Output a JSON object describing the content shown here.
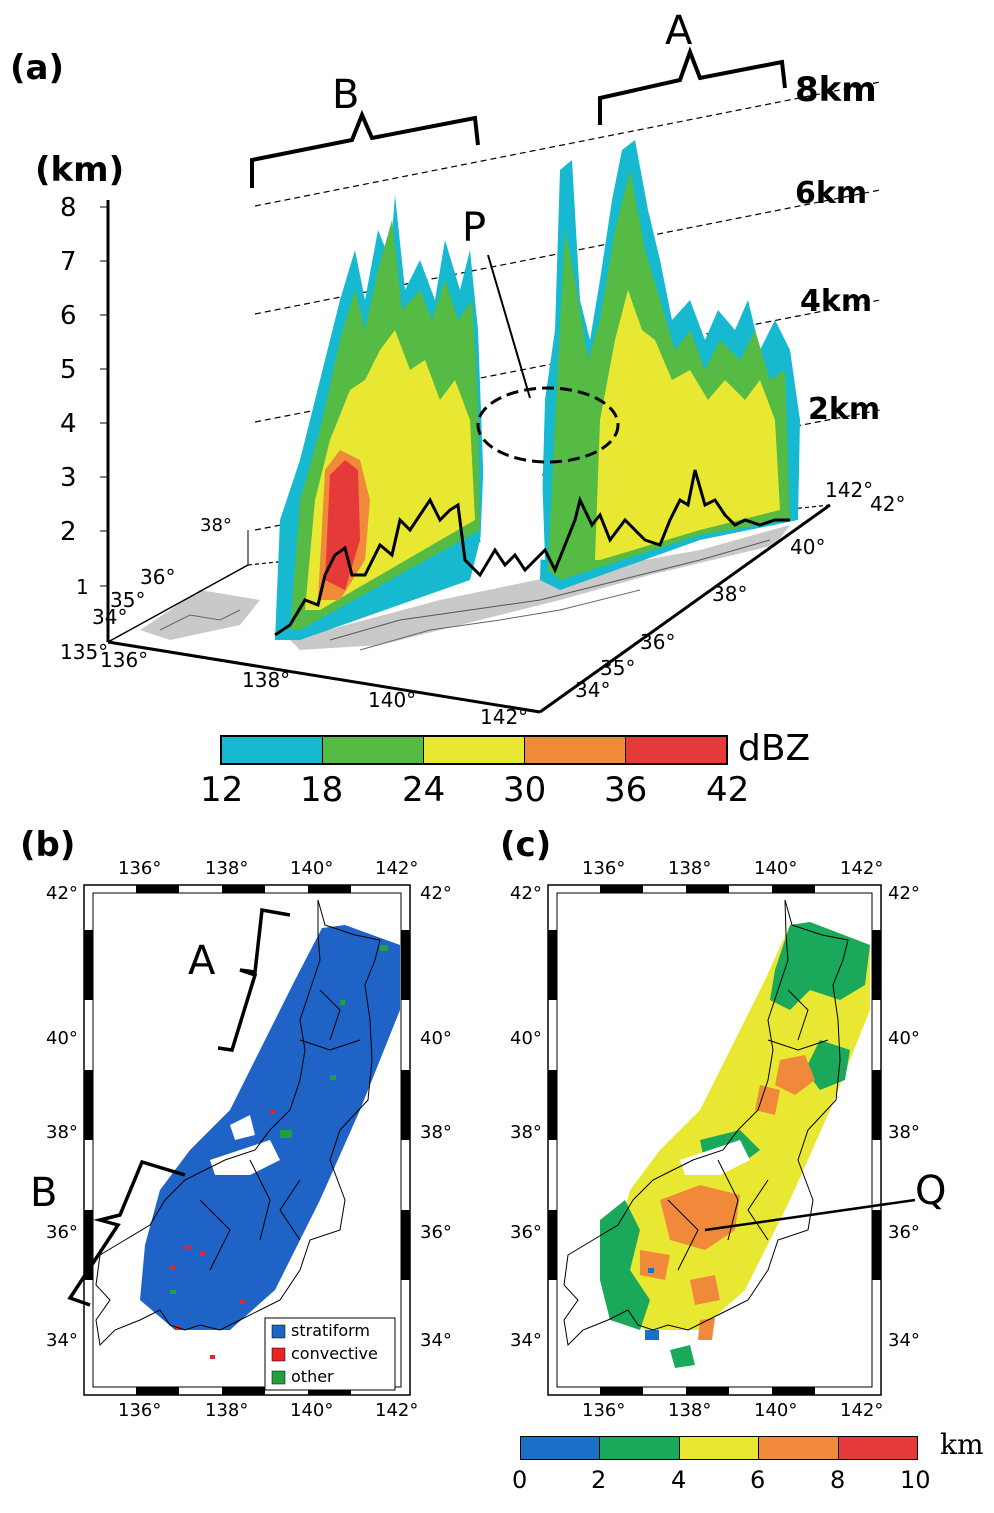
{
  "panel_a": {
    "label": "(a)",
    "z_unit": "(km)",
    "z_ticks": [
      "1",
      "2",
      "3",
      "4",
      "5",
      "6",
      "7",
      "8"
    ],
    "height_lines": [
      "2km",
      "4km",
      "6km",
      "8km"
    ],
    "region_a": "A",
    "region_b": "B",
    "point_p": "P",
    "lon_ticks": [
      "135",
      "136",
      "138",
      "140",
      "142"
    ],
    "lat_ticks_left": [
      "34",
      "35",
      "36",
      "38"
    ],
    "lat_ticks_right": [
      "34",
      "35",
      "36",
      "38",
      "40",
      "42"
    ],
    "lon_ticks_back": [
      "142",
      "42"
    ],
    "colorbar": {
      "unit": "dBZ",
      "ticks": [
        "12",
        "18",
        "24",
        "30",
        "36",
        "42"
      ],
      "colors": [
        "#16b9cf",
        "#55bb44",
        "#e8e833",
        "#f08a3a",
        "#e63a3a"
      ]
    }
  },
  "panel_b": {
    "label": "(b)",
    "region_a": "A",
    "region_b": "B",
    "lon_ticks": [
      "136",
      "138",
      "140",
      "142"
    ],
    "lat_ticks": [
      "34",
      "36",
      "38",
      "40",
      "42"
    ],
    "legend": [
      {
        "label": "stratiform",
        "color": "#1f63c6"
      },
      {
        "label": "convective",
        "color": "#e52424"
      },
      {
        "label": "other",
        "color": "#22a040"
      }
    ]
  },
  "panel_c": {
    "label": "(c)",
    "point_q": "Q",
    "lon_ticks": [
      "136",
      "138",
      "140",
      "142"
    ],
    "lat_ticks": [
      "34",
      "36",
      "38",
      "40",
      "42"
    ],
    "colorbar": {
      "unit": "km",
      "ticks": [
        "0",
        "2",
        "4",
        "6",
        "8",
        "10"
      ],
      "colors": [
        "#1a6fc9",
        "#1aa85a",
        "#e8e833",
        "#f08a3a",
        "#e63a3a"
      ]
    }
  }
}
